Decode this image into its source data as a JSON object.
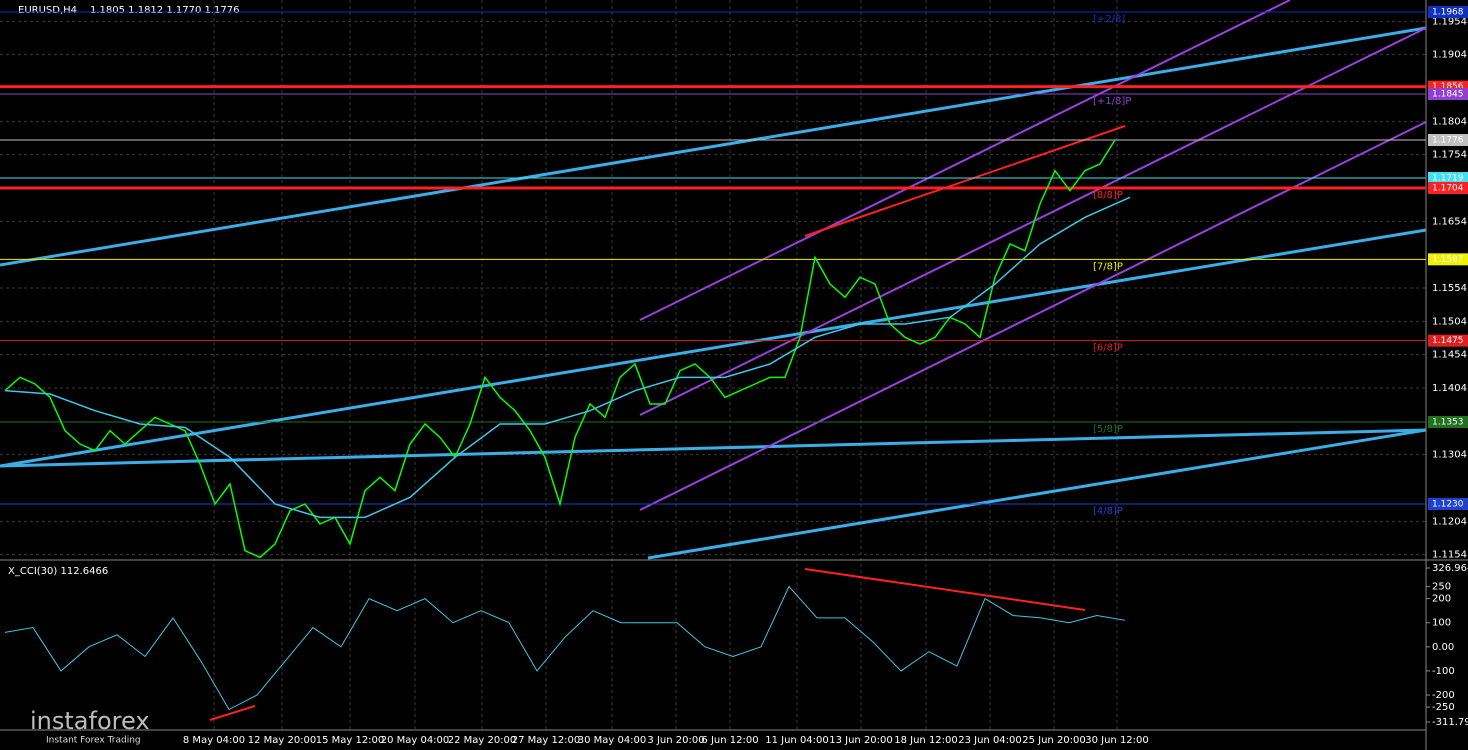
{
  "chart_data": {
    "type": "line",
    "title": "EURUSD,H4",
    "quote": "1.1805 1.1812 1.1770 1.1776",
    "ylim": [
      1.1149,
      1.1986
    ],
    "yticks": [
      1.1954,
      1.1904,
      1.1804,
      1.1754,
      1.1654,
      1.1554,
      1.1504,
      1.1454,
      1.1404,
      1.1304,
      1.1204,
      1.1154
    ],
    "xlabels": [
      "8 May 04:00",
      "12 May 20:00",
      "15 May 12:00",
      "20 May 04:00",
      "22 May 20:00",
      "27 May 12:00",
      "30 May 04:00",
      "3 Jun 20:00",
      "6 Jun 12:00",
      "11 Jun 04:00",
      "13 Jun 20:00",
      "18 Jun 12:00",
      "23 Jun 04:00",
      "25 Jun 20:00",
      "30 Jun 12:00"
    ],
    "price": {
      "color": "#00ff00",
      "values": [
        1.14,
        1.142,
        1.141,
        1.139,
        1.134,
        1.132,
        1.131,
        1.134,
        1.132,
        1.134,
        1.136,
        1.135,
        1.134,
        1.129,
        1.123,
        1.126,
        1.116,
        1.115,
        1.117,
        1.122,
        1.123,
        1.12,
        1.121,
        1.117,
        1.125,
        1.127,
        1.125,
        1.132,
        1.135,
        1.133,
        1.13,
        1.135,
        1.142,
        1.139,
        1.137,
        1.134,
        1.13,
        1.123,
        1.133,
        1.138,
        1.136,
        1.142,
        1.144,
        1.138,
        1.138,
        1.143,
        1.144,
        1.142,
        1.139,
        1.14,
        1.141,
        1.142,
        1.142,
        1.148,
        1.16,
        1.156,
        1.154,
        1.157,
        1.156,
        1.15,
        1.148,
        1.147,
        1.148,
        1.151,
        1.15,
        1.148,
        1.157,
        1.162,
        1.161,
        1.168,
        1.173,
        1.17,
        1.173,
        1.174,
        1.1776
      ]
    },
    "ma": {
      "color": "#3ec8e8",
      "values": [
        1.14,
        1.1395,
        1.137,
        1.135,
        1.1345,
        1.13,
        1.123,
        1.121,
        1.121,
        1.124,
        1.13,
        1.135,
        1.135,
        1.137,
        1.14,
        1.142,
        1.142,
        1.144,
        1.148,
        1.15,
        1.15,
        1.151,
        1.156,
        1.162,
        1.166,
        1.169
      ]
    },
    "levels": [
      {
        "value": 1.1968,
        "color": "#1030c0",
        "tag": "[+2/8]"
      },
      {
        "value": 1.1856,
        "color": "#ff2020"
      },
      {
        "value": 1.1845,
        "color": "#9040d0",
        "tag": "[+1/8]P"
      },
      {
        "value": 1.1776,
        "color": "#c0c0c0"
      },
      {
        "value": 1.1719,
        "color": "#40e0f0"
      },
      {
        "value": 1.1704,
        "color": "#ff2020",
        "tag": "[8/8]P"
      },
      {
        "value": 1.1597,
        "color": "#f0f000",
        "tag": "[7/8]P"
      },
      {
        "value": 1.1475,
        "color": "#e02020",
        "tag": "[6/8]P"
      },
      {
        "value": 1.1353,
        "color": "#207020",
        "tag": "[5/8]P"
      },
      {
        "value": {
          "value": 1.123,
          "label": "1.1230"
        },
        "color": "#2040d0",
        "tag": "[4/8]P"
      }
    ],
    "cci": {
      "title": "X_CCI(30) 112.6466",
      "color": "#3ec8e8",
      "ylim": [
        -311.798,
        326.9647
      ],
      "yticks": [
        326.9647,
        250,
        200,
        100,
        {
          "value": 0,
          "label": "0.00"
        },
        -100,
        -200,
        -250,
        -311.798
      ],
      "values": [
        60,
        80,
        -100,
        0,
        50,
        -40,
        120,
        -60,
        -260,
        -200,
        -60,
        80,
        0,
        200,
        150,
        200,
        100,
        150,
        100,
        -100,
        40,
        150,
        100,
        100,
        100,
        0,
        -40,
        0,
        250,
        120,
        120,
        20,
        -100,
        -20,
        -80,
        200,
        130,
        120,
        100,
        130,
        110
      ]
    },
    "watermark": "instaforex",
    "watermark_sub": "Instant Forex Trading"
  }
}
